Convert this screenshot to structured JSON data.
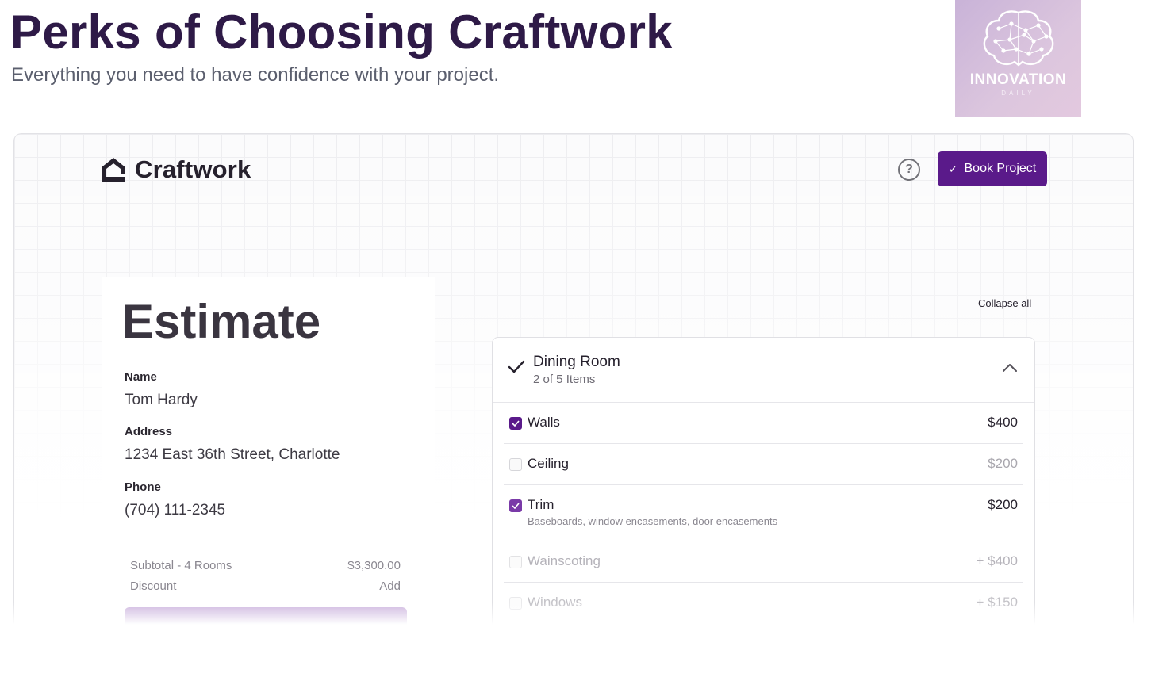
{
  "page": {
    "title": "Perks of Choosing Craftwork",
    "subtitle": "Everything you need to have confidence with your project."
  },
  "badge": {
    "name": "INNOVATION",
    "sub": "DAILY",
    "icon": "brain-network-icon"
  },
  "app": {
    "logo_text": "Craftwork",
    "logo_icon": "house-icon",
    "help_label": "?",
    "book_button": "Book Project",
    "accent_color": "#5a1a8a"
  },
  "estimate": {
    "title": "Estimate",
    "fields": [
      {
        "label": "Name",
        "value": "Tom Hardy"
      },
      {
        "label": "Address",
        "value": "1234 East 36th Street, Charlotte"
      },
      {
        "label": "Phone",
        "value": "(704) 111-2345"
      }
    ],
    "subtotal_label": "Subtotal - 4 Rooms",
    "subtotal_value": "$3,300.00",
    "discount_label": "Discount",
    "discount_action": "Add"
  },
  "rooms": {
    "collapse_all": "Collapse all",
    "card": {
      "title": "Dining Room",
      "count": "2 of 5 Items",
      "items": [
        {
          "name": "Walls",
          "price": "$400",
          "checked": true
        },
        {
          "name": "Ceiling",
          "price": "$200",
          "checked": false
        },
        {
          "name": "Trim",
          "price": "$200",
          "checked": true,
          "description": "Baseboards, window encasements, door encasements"
        },
        {
          "name": "Wainscoting",
          "price": "+ $400",
          "checked": false
        },
        {
          "name": "Windows",
          "price": "+ $150",
          "checked": false
        }
      ]
    }
  }
}
